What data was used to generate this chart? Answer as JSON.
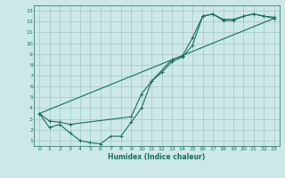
{
  "xlabel": "Humidex (Indice chaleur)",
  "bg_color": "#cce8e8",
  "grid_color": "#aacccc",
  "line_color": "#1a6e5e",
  "xlim": [
    -0.5,
    23.5
  ],
  "ylim": [
    0.5,
    13.5
  ],
  "xticks": [
    0,
    1,
    2,
    3,
    4,
    5,
    6,
    7,
    8,
    9,
    10,
    11,
    12,
    13,
    14,
    15,
    16,
    17,
    18,
    19,
    20,
    21,
    22,
    23
  ],
  "yticks": [
    1,
    2,
    3,
    4,
    5,
    6,
    7,
    8,
    9,
    10,
    11,
    12,
    13
  ],
  "line1_x": [
    0,
    1,
    2,
    3,
    4,
    5,
    6,
    7,
    8,
    9,
    10,
    11,
    12,
    13,
    14,
    15,
    16,
    17,
    18,
    19,
    20,
    21,
    22,
    23
  ],
  "line1_y": [
    3.5,
    2.2,
    2.5,
    1.7,
    1.0,
    0.8,
    0.7,
    1.4,
    1.4,
    2.7,
    4.0,
    6.5,
    7.3,
    8.3,
    8.7,
    9.8,
    12.5,
    12.7,
    12.1,
    12.1,
    12.5,
    12.7,
    12.5,
    12.4
  ],
  "line2_x": [
    0,
    1,
    2,
    3,
    9,
    10,
    11,
    13,
    14,
    15,
    16,
    17,
    18,
    19,
    20,
    21,
    22,
    23
  ],
  "line2_y": [
    3.5,
    2.8,
    2.7,
    2.5,
    3.2,
    5.3,
    6.5,
    8.5,
    8.8,
    10.5,
    12.5,
    12.7,
    12.2,
    12.2,
    12.5,
    12.7,
    12.5,
    12.3
  ],
  "line3_x": [
    0,
    23
  ],
  "line3_y": [
    3.5,
    12.3
  ]
}
